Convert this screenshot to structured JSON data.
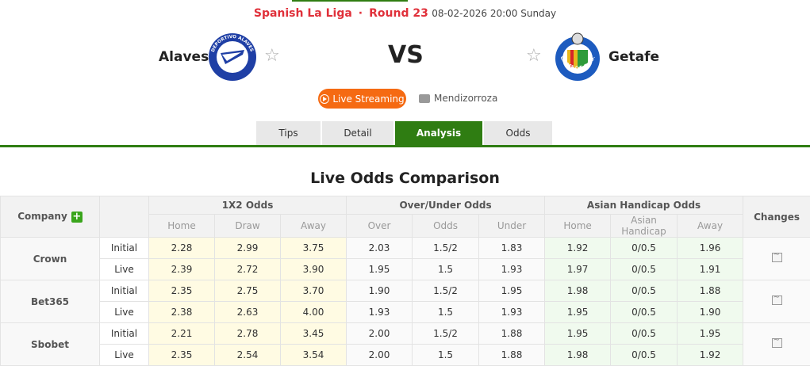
{
  "header": {
    "league": "Spanish La Liga",
    "separator": "·",
    "round": "Round 23",
    "datetime": "08-02-2026 20:00 Sunday",
    "home_team": "Alaves",
    "away_team": "Getafe",
    "home_logo_text": "DEPORTIVO ALAVES",
    "away_logo_text": "GETAFE C.F. S.A.D.",
    "vs": "VS",
    "live_button": "Live Streaming",
    "venue": "Mendizorroza"
  },
  "tabs": [
    {
      "label": "Tips",
      "active": false
    },
    {
      "label": "Detail",
      "active": false
    },
    {
      "label": "Analysis",
      "active": true
    },
    {
      "label": "Odds",
      "active": false
    }
  ],
  "section_title": "Live Odds Comparison",
  "table": {
    "company_header": "Company",
    "changes_header": "Changes",
    "groups": [
      "1X2 Odds",
      "Over/Under Odds",
      "Asian Handicap Odds"
    ],
    "subheaders": [
      "Home",
      "Draw",
      "Away",
      "Over",
      "Odds",
      "Under",
      "Home",
      "Asian Handicap",
      "Away"
    ],
    "companies": [
      {
        "name": "Crown",
        "rows": [
          {
            "type": "Initial",
            "values": [
              "2.28",
              "2.99",
              "3.75",
              "2.03",
              "1.5/2",
              "1.83",
              "1.92",
              "0/0.5",
              "1.96"
            ]
          },
          {
            "type": "Live",
            "values": [
              "2.39",
              "2.72",
              "3.90",
              "1.95",
              "1.5",
              "1.93",
              "1.97",
              "0/0.5",
              "1.91"
            ]
          }
        ]
      },
      {
        "name": "Bet365",
        "rows": [
          {
            "type": "Initial",
            "values": [
              "2.35",
              "2.75",
              "3.70",
              "1.90",
              "1.5/2",
              "1.95",
              "1.98",
              "0/0.5",
              "1.88"
            ]
          },
          {
            "type": "Live",
            "values": [
              "2.38",
              "2.63",
              "4.00",
              "1.93",
              "1.5",
              "1.93",
              "1.95",
              "0/0.5",
              "1.90"
            ]
          }
        ]
      },
      {
        "name": "Sbobet",
        "rows": [
          {
            "type": "Initial",
            "values": [
              "2.21",
              "2.78",
              "3.45",
              "2.00",
              "1.5/2",
              "1.88",
              "1.95",
              "0/0.5",
              "1.95"
            ]
          },
          {
            "type": "Live",
            "values": [
              "2.35",
              "2.54",
              "3.54",
              "2.00",
              "1.5",
              "1.88",
              "1.98",
              "0/0.5",
              "1.92"
            ]
          }
        ]
      }
    ]
  },
  "colors": {
    "accent_green": "#2f7d12",
    "league_red": "#e0303a",
    "live_orange": "#f56a12",
    "x12_bg": "#fffbe3",
    "ah_bg": "#f0faee"
  }
}
